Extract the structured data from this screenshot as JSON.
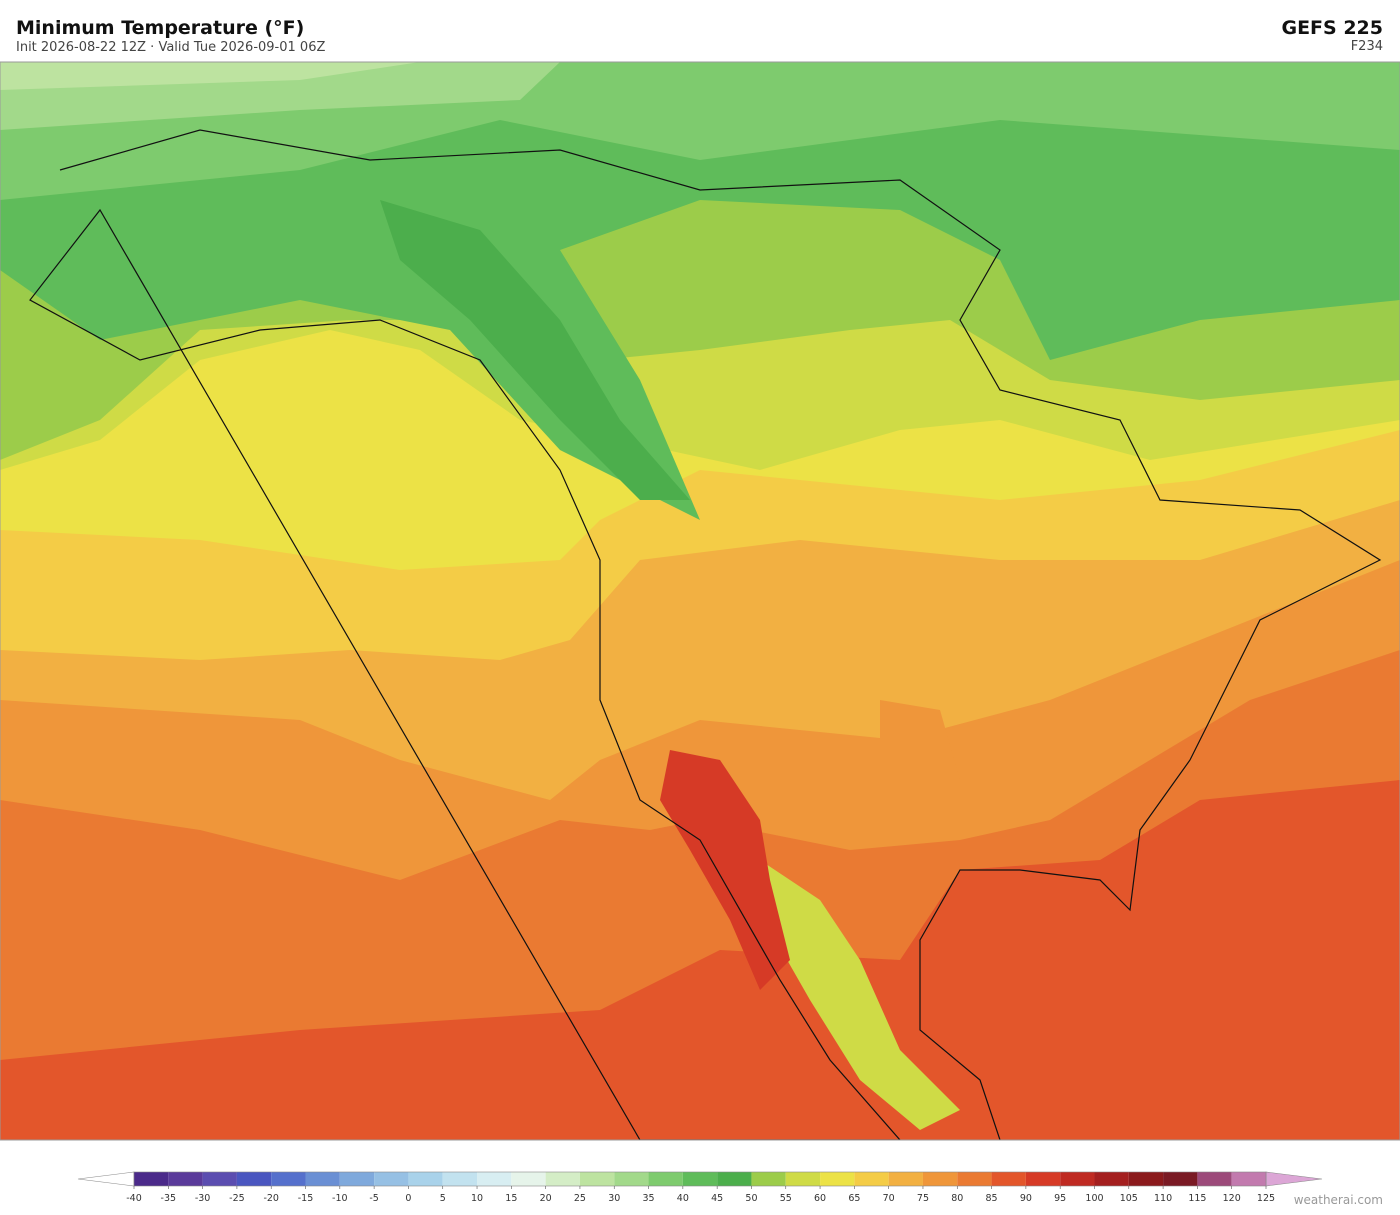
{
  "header": {
    "title": "Minimum Temperature  (°F)",
    "subtitle": "Init 2026-08-22 12Z  ·  Valid Tue 2026-09-01 06Z",
    "model": "GEFS  225",
    "forecast_hour": "F234"
  },
  "colorbar": {
    "ticks": [
      -40,
      -35,
      -30,
      -25,
      -20,
      -15,
      -10,
      -5,
      0,
      5,
      10,
      15,
      20,
      25,
      30,
      35,
      40,
      45,
      50,
      55,
      60,
      65,
      70,
      75,
      80,
      85,
      90,
      95,
      100,
      105,
      110,
      115,
      120,
      125
    ],
    "colors": [
      "#4b2a8a",
      "#5a3a9a",
      "#5b4db0",
      "#4a56c0",
      "#5570cc",
      "#6a8fd4",
      "#7fa9dc",
      "#96c0e4",
      "#a9d2ea",
      "#c2e2ef",
      "#d8eef2",
      "#e6f4ea",
      "#d4edc6",
      "#bde3a0",
      "#a2d98a",
      "#7ecb6e",
      "#5fbc5a",
      "#4cae4c",
      "#9ccc4a",
      "#cfdb46",
      "#ece246",
      "#f4cc46",
      "#f2b042",
      "#ef963a",
      "#ea7a32",
      "#e3562b",
      "#d63a26",
      "#bf2a22",
      "#a41f1f",
      "#8b1a1c",
      "#7a1a24",
      "#9c4a7a",
      "#c27aae"
    ],
    "under_color": "#ffffff",
    "over_color": "#dca6d6"
  },
  "footer": {
    "credit": "weatherai.com"
  }
}
